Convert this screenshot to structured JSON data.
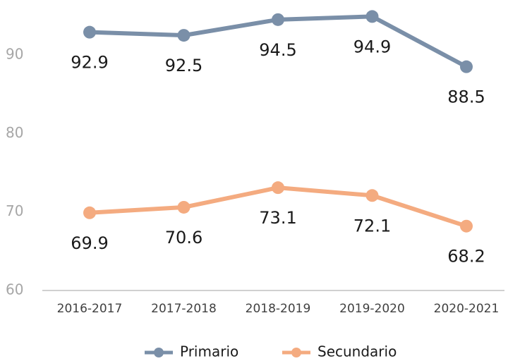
{
  "chart_data": {
    "type": "line",
    "categories": [
      "2016-2017",
      "2017-2018",
      "2018-2019",
      "2019-2020",
      "2020-2021"
    ],
    "series": [
      {
        "name": "Primario",
        "color": "#7a8fa8",
        "values": [
          92.9,
          92.5,
          94.5,
          94.9,
          88.5
        ]
      },
      {
        "name": "Secundario",
        "color": "#f4ab80",
        "values": [
          69.9,
          70.6,
          73.1,
          72.1,
          68.2
        ]
      }
    ],
    "ylim": [
      60,
      97
    ],
    "yticks": [
      60,
      70,
      80,
      90
    ],
    "grid": false,
    "legend": "bottom"
  }
}
